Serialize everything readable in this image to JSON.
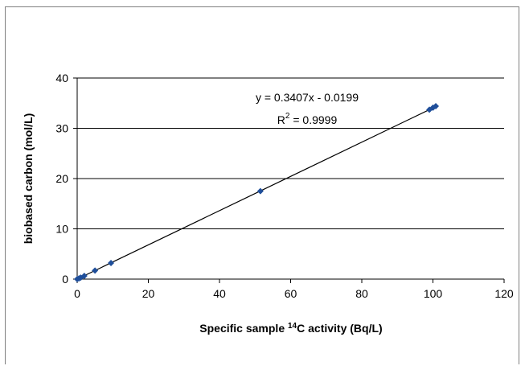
{
  "chart_data": {
    "type": "scatter",
    "title": "",
    "xlabel_prefix": "Specific sample ",
    "xlabel_sup": "14",
    "xlabel_suffix": "C  activity (Bq/L)",
    "ylabel": "biobased carbon (mol/L)",
    "xlim": [
      0,
      120
    ],
    "ylim": [
      0,
      40
    ],
    "x_ticks": [
      0,
      20,
      40,
      60,
      80,
      100,
      120
    ],
    "y_ticks": [
      0,
      10,
      20,
      30,
      40
    ],
    "grid": "horizontal",
    "series": [
      {
        "color": "#1f4e9a",
        "marker": "diamond",
        "points": [
          {
            "x": 0.0,
            "y": 0.0
          },
          {
            "x": 0.5,
            "y": 0.15
          },
          {
            "x": 1.0,
            "y": 0.3
          },
          {
            "x": 2.0,
            "y": 0.65
          },
          {
            "x": 5.0,
            "y": 1.7
          },
          {
            "x": 9.5,
            "y": 3.2
          },
          {
            "x": 51.5,
            "y": 17.5
          },
          {
            "x": 99.0,
            "y": 33.7
          },
          {
            "x": 100.0,
            "y": 34.1
          },
          {
            "x": 100.8,
            "y": 34.4
          }
        ]
      }
    ],
    "trendline": {
      "slope": 0.3407,
      "intercept": -0.0199,
      "x_range": [
        0,
        101
      ],
      "equation": "y = 0.3407x - 0.0199",
      "r2_base": "R",
      "r2_sup": "2",
      "r2_value": " = 0.9999"
    }
  }
}
